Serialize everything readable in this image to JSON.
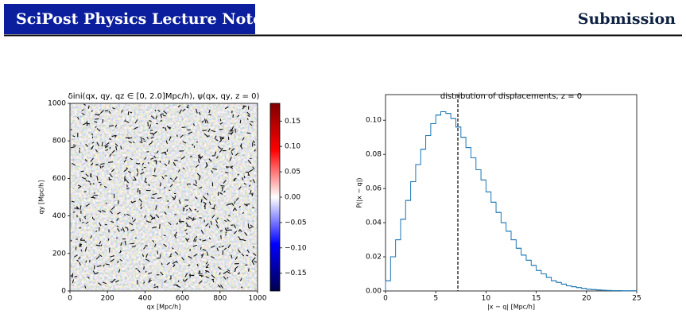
{
  "header": {
    "journal": "SciPost Physics Lecture Notes",
    "label": "Submission"
  },
  "chart_data": [
    {
      "type": "heatmap",
      "title": "δini(qx, qy, qz ∈ [0, 2.0]Mpc/h), ψ(qx, qy, z = 0)",
      "xlabel": "qx [Mpc/h]",
      "ylabel": "qy [Mpc/h]",
      "xlim": [
        0,
        1000
      ],
      "xticks": [
        0,
        200,
        400,
        600,
        800,
        1000
      ],
      "ylim": [
        0,
        1000
      ],
      "yticks": [
        0,
        200,
        400,
        600,
        800,
        1000
      ],
      "colorbar": {
        "lim": [
          -0.185,
          0.185
        ],
        "ticks": [
          {
            "value": 0.15,
            "label": "0.15"
          },
          {
            "value": 0.1,
            "label": "0.10"
          },
          {
            "value": 0.05,
            "label": "0.05"
          },
          {
            "value": 0,
            "label": "0.00"
          },
          {
            "value": -0.05,
            "label": "−0.05"
          },
          {
            "value": -0.1,
            "label": "−0.10"
          },
          {
            "value": -0.15,
            "label": "−0.15"
          }
        ]
      }
    },
    {
      "type": "histogram",
      "title": "distribution of displacements, z = 0",
      "xlabel": "|x − q| [Mpc/h]",
      "ylabel": "P(|x − q|)",
      "color": "#1f77b4",
      "bins": [
        0,
        0.5,
        1,
        1.5,
        2,
        2.5,
        3,
        3.5,
        4,
        4.5,
        5,
        5.5,
        6,
        6.5,
        7,
        7.5,
        8,
        8.5,
        9,
        9.5,
        10,
        10.5,
        11,
        11.5,
        12,
        12.5,
        13,
        13.5,
        14,
        14.5,
        15,
        15.5,
        16,
        16.5,
        17,
        17.5,
        18,
        18.5,
        19,
        19.5,
        20,
        20.5,
        21,
        21.5,
        22,
        22.5,
        23,
        23.5,
        24,
        24.5,
        25
      ],
      "counts": [
        0.006,
        0.02,
        0.03,
        0.042,
        0.053,
        0.064,
        0.074,
        0.083,
        0.091,
        0.098,
        0.103,
        0.105,
        0.104,
        0.101,
        0.096,
        0.09,
        0.084,
        0.078,
        0.071,
        0.065,
        0.058,
        0.052,
        0.046,
        0.04,
        0.035,
        0.03,
        0.025,
        0.021,
        0.018,
        0.015,
        0.012,
        0.01,
        0.008,
        0.006,
        0.005,
        0.004,
        0.003,
        0.0025,
        0.002,
        0.0015,
        0.001,
        0.0008,
        0.0006,
        0.0004,
        0.0003,
        0.0002,
        0.0002,
        0.0001,
        0.0001,
        0.0001
      ],
      "vline": 7.2,
      "xlim": [
        0,
        25
      ],
      "xticks": [
        0,
        5,
        10,
        15,
        20,
        25
      ],
      "ylim": [
        0,
        0.115
      ],
      "yticks": [
        {
          "value": 0,
          "label": "0.00"
        },
        {
          "value": 0.02,
          "label": "0.02"
        },
        {
          "value": 0.04,
          "label": "0.04"
        },
        {
          "value": 0.06,
          "label": "0.06"
        },
        {
          "value": 0.08,
          "label": "0.08"
        },
        {
          "value": 0.1,
          "label": "0.10"
        }
      ]
    }
  ]
}
